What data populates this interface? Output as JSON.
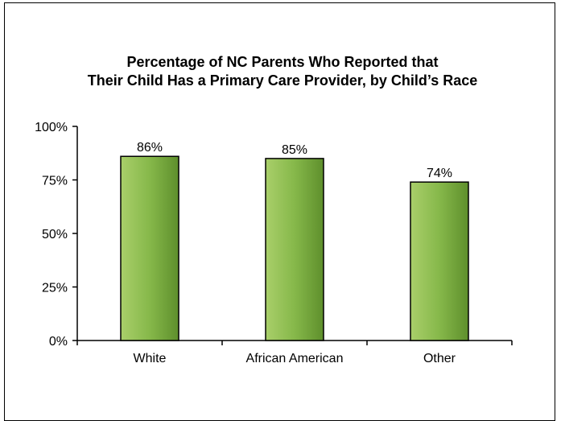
{
  "chart_data": {
    "type": "bar",
    "title_lines": [
      "Percentage of NC Parents Who Reported that",
      "Their Child Has a Primary Care Provider, by Child’s Race"
    ],
    "categories": [
      "White",
      "African American",
      "Other"
    ],
    "values": [
      86,
      85,
      74
    ],
    "value_labels": [
      "86%",
      "85%",
      "74%"
    ],
    "xlabel": "",
    "ylabel": "",
    "ylim": [
      0,
      100
    ],
    "yticks": [
      0,
      25,
      50,
      75,
      100
    ],
    "ytick_labels": [
      "0%",
      "25%",
      "50%",
      "75%",
      "100%"
    ],
    "grid": false,
    "legend": "none",
    "colors": {
      "bar_light": "#a9cf6a",
      "bar_dark": "#5e8f2c",
      "bar_outline": "#000000"
    }
  }
}
